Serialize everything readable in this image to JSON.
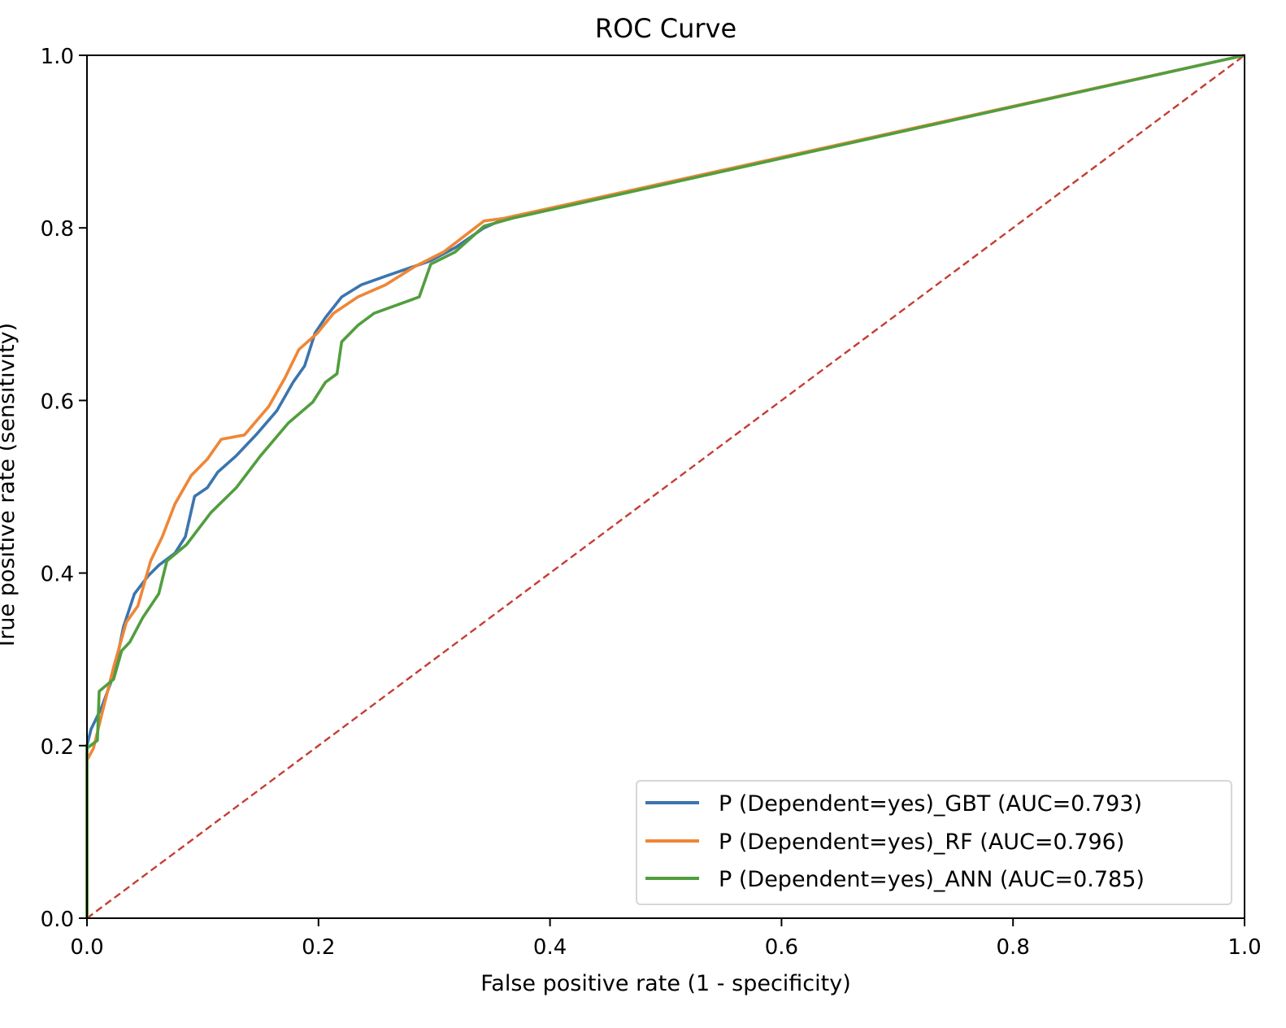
{
  "chart_data": {
    "type": "line",
    "title": "ROC Curve",
    "xlabel": "False positive rate (1 - specificity)",
    "ylabel": "True positive rate (sensitivity)",
    "xlim": [
      0.0,
      1.0
    ],
    "ylim": [
      0.0,
      1.0
    ],
    "grid": false,
    "legend_position": "lower-right",
    "xticks": [
      "0.0",
      "0.2",
      "0.4",
      "0.6",
      "0.8",
      "1.0"
    ],
    "yticks": [
      "0.0",
      "0.2",
      "0.4",
      "0.6",
      "0.8",
      "1.0"
    ],
    "xtick_values": [
      0.0,
      0.2,
      0.4,
      0.6,
      0.8,
      1.0
    ],
    "ytick_values": [
      0.0,
      0.2,
      0.4,
      0.6,
      0.8,
      1.0
    ],
    "series": [
      {
        "name": "P (Dependent=yes)_GBT (AUC=0.793)",
        "color": "#3b75af",
        "x": [
          0,
          0,
          0.0035,
          0.0126,
          0.023,
          0.0316,
          0.041,
          0.053,
          0.062,
          0.076,
          0.085,
          0.093,
          0.104,
          0.113,
          0.129,
          0.146,
          0.164,
          0.178,
          0.188,
          0.197,
          0.206,
          0.22,
          0.237,
          0.258,
          0.297,
          0.318,
          0.343,
          0.36,
          1.0
        ],
        "y": [
          0,
          0.2,
          0.219,
          0.244,
          0.282,
          0.338,
          0.376,
          0.397,
          0.409,
          0.423,
          0.442,
          0.489,
          0.499,
          0.517,
          0.536,
          0.56,
          0.588,
          0.621,
          0.64,
          0.678,
          0.696,
          0.72,
          0.734,
          0.744,
          0.762,
          0.777,
          0.8,
          0.81,
          1.0
        ]
      },
      {
        "name": "P (Dependent=yes)_RF (AUC=0.796)",
        "color": "#ef8636",
        "x": [
          0,
          0,
          0.0056,
          0.0126,
          0.023,
          0.034,
          0.044,
          0.055,
          0.065,
          0.076,
          0.09,
          0.104,
          0.116,
          0.136,
          0.157,
          0.171,
          0.183,
          0.199,
          0.213,
          0.234,
          0.258,
          0.283,
          0.308,
          0.343,
          0.36,
          1.0
        ],
        "y": [
          0,
          0.183,
          0.197,
          0.235,
          0.291,
          0.343,
          0.362,
          0.414,
          0.442,
          0.48,
          0.513,
          0.532,
          0.555,
          0.56,
          0.593,
          0.626,
          0.659,
          0.678,
          0.701,
          0.72,
          0.734,
          0.755,
          0.772,
          0.808,
          0.811,
          1.0
        ]
      },
      {
        "name": "P (Dependent=yes)_ANN (AUC=0.785)",
        "color": "#519e3e",
        "x": [
          0,
          0,
          0.009,
          0.0105,
          0.023,
          0.03,
          0.037,
          0.048,
          0.062,
          0.069,
          0.086,
          0.107,
          0.129,
          0.15,
          0.174,
          0.195,
          0.206,
          0.216,
          0.22,
          0.234,
          0.248,
          0.287,
          0.297,
          0.318,
          0.343,
          0.367,
          1.0
        ],
        "y": [
          0,
          0.197,
          0.206,
          0.263,
          0.277,
          0.31,
          0.32,
          0.348,
          0.376,
          0.414,
          0.433,
          0.47,
          0.499,
          0.536,
          0.574,
          0.598,
          0.621,
          0.631,
          0.668,
          0.687,
          0.701,
          0.72,
          0.758,
          0.772,
          0.802,
          0.811,
          1.0
        ]
      }
    ],
    "reference_line": {
      "name": "random-chance diagonal",
      "color": "#c63c35",
      "style": "dashed",
      "x": [
        0,
        1
      ],
      "y": [
        0,
        1
      ]
    }
  }
}
